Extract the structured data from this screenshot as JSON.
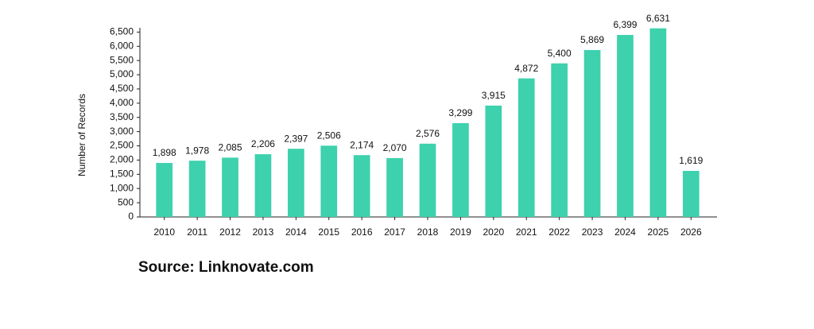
{
  "chart_data": {
    "type": "bar",
    "y_label": "Number of Records",
    "source": "Source: Linknovate.com",
    "categories": [
      "2010",
      "2011",
      "2012",
      "2013",
      "2014",
      "2015",
      "2016",
      "2017",
      "2018",
      "2019",
      "2020",
      "2021",
      "2022",
      "2023",
      "2024",
      "2025",
      "2026"
    ],
    "values": [
      1898,
      1978,
      2085,
      2206,
      2397,
      2506,
      2174,
      2070,
      2576,
      3299,
      3915,
      4872,
      5400,
      5869,
      6399,
      6631,
      1619
    ],
    "value_labels": [
      "1,898",
      "1,978",
      "2,085",
      "2,206",
      "2,397",
      "2,506",
      "2,174",
      "2,070",
      "2,576",
      "3,299",
      "3,915",
      "4,872",
      "5,400",
      "5,869",
      "6,399",
      "6,631",
      "1,619"
    ],
    "color": "#3dd1ad",
    "ylim": [
      0,
      6650
    ],
    "yticks": [
      0,
      500,
      {
        "value": 1000,
        "label": "1,000"
      },
      {
        "value": 1500,
        "label": "1,500"
      },
      {
        "value": 2000,
        "label": "2,000"
      },
      {
        "value": 2500,
        "label": "2,500"
      },
      {
        "value": 3000,
        "label": "3,000"
      },
      {
        "value": 3500,
        "label": "3,500"
      },
      {
        "value": 4000,
        "label": "4,000"
      },
      {
        "value": 4500,
        "label": "4,500"
      },
      {
        "value": 5000,
        "label": "5,000"
      },
      {
        "value": 5500,
        "label": "5,500"
      },
      {
        "value": 6000,
        "label": "6,000"
      },
      {
        "value": 6500,
        "label": "6,500"
      }
    ],
    "grid": false
  }
}
